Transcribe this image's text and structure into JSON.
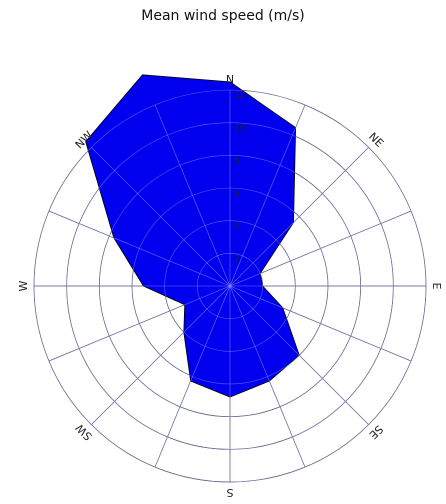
{
  "chart_data": {
    "type": "polar-area",
    "title": "Mean wind speed (m/s)",
    "directions": [
      "N",
      "NE",
      "E",
      "SE",
      "S",
      "SW",
      "W",
      "NW"
    ],
    "radial_ticks": [
      2,
      4,
      6,
      8,
      10,
      12
    ],
    "r_max": 12,
    "theta_step_deg": 22.5,
    "values_by_bearing": [
      12.5,
      10.5,
      5.5,
      2.0,
      2.0,
      3.5,
      6.0,
      6.3,
      6.8,
      6.3,
      4.0,
      3.0,
      5.3,
      7.7,
      12.5,
      14.0
    ],
    "fill_color": "#0000ee",
    "edge_color": "#000000",
    "grid": true
  }
}
